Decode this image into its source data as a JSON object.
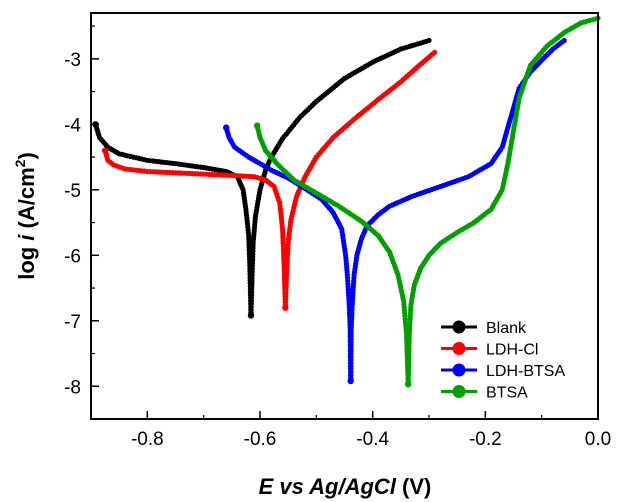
{
  "chart_data": {
    "type": "line",
    "xlabel": {
      "italic": "E vs Ag/AgCl",
      "unit": " (V)"
    },
    "ylabel": {
      "prefix": "log ",
      "italic": "i",
      "unit": " (A/cm",
      "sup": "2",
      "close": ")"
    },
    "xlim": [
      -0.9,
      0.0
    ],
    "ylim": [
      -8.5,
      -2.3
    ],
    "xticks": [
      -0.8,
      -0.6,
      -0.4,
      -0.2,
      0.0
    ],
    "xtick_labels": [
      "-0.8",
      "-0.6",
      "-0.4",
      "-0.2",
      "0.0"
    ],
    "yticks": [
      -3,
      -4,
      -5,
      -6,
      -7,
      -8
    ],
    "ytick_labels": [
      "-3",
      "-4",
      "-5",
      "-6",
      "-7",
      "-8"
    ],
    "grid": false,
    "legend_position": "bottom-right",
    "series": [
      {
        "name": "Blank",
        "color": "#000000",
        "cathodic": [
          [
            -0.892,
            -4.0
          ],
          [
            -0.885,
            -4.2
          ],
          [
            -0.87,
            -4.35
          ],
          [
            -0.85,
            -4.45
          ],
          [
            -0.8,
            -4.55
          ],
          [
            -0.75,
            -4.6
          ],
          [
            -0.7,
            -4.66
          ],
          [
            -0.66,
            -4.72
          ],
          [
            -0.64,
            -4.8
          ],
          [
            -0.63,
            -5.0
          ],
          [
            -0.625,
            -5.3
          ],
          [
            -0.62,
            -5.7
          ],
          [
            -0.618,
            -6.2
          ],
          [
            -0.616,
            -6.92
          ]
        ],
        "anodic": [
          [
            -0.616,
            -6.92
          ],
          [
            -0.614,
            -6.3
          ],
          [
            -0.612,
            -5.8
          ],
          [
            -0.608,
            -5.4
          ],
          [
            -0.6,
            -5.0
          ],
          [
            -0.59,
            -4.7
          ],
          [
            -0.58,
            -4.5
          ],
          [
            -0.56,
            -4.22
          ],
          [
            -0.53,
            -3.9
          ],
          [
            -0.5,
            -3.65
          ],
          [
            -0.45,
            -3.3
          ],
          [
            -0.4,
            -3.05
          ],
          [
            -0.35,
            -2.85
          ],
          [
            -0.3,
            -2.72
          ]
        ]
      },
      {
        "name": "LDH-Cl",
        "color": "#ff0000",
        "cathodic": [
          [
            -0.875,
            -4.4
          ],
          [
            -0.87,
            -4.55
          ],
          [
            -0.86,
            -4.62
          ],
          [
            -0.84,
            -4.68
          ],
          [
            -0.8,
            -4.72
          ],
          [
            -0.75,
            -4.74
          ],
          [
            -0.7,
            -4.76
          ],
          [
            -0.65,
            -4.78
          ],
          [
            -0.61,
            -4.8
          ],
          [
            -0.59,
            -4.85
          ],
          [
            -0.575,
            -4.95
          ],
          [
            -0.565,
            -5.2
          ],
          [
            -0.56,
            -5.6
          ],
          [
            -0.557,
            -6.2
          ],
          [
            -0.555,
            -6.8
          ]
        ],
        "anodic": [
          [
            -0.555,
            -6.8
          ],
          [
            -0.553,
            -6.3
          ],
          [
            -0.55,
            -5.8
          ],
          [
            -0.545,
            -5.45
          ],
          [
            -0.535,
            -5.1
          ],
          [
            -0.52,
            -4.8
          ],
          [
            -0.5,
            -4.5
          ],
          [
            -0.47,
            -4.2
          ],
          [
            -0.43,
            -3.9
          ],
          [
            -0.39,
            -3.62
          ],
          [
            -0.35,
            -3.35
          ],
          [
            -0.32,
            -3.12
          ],
          [
            -0.29,
            -2.9
          ]
        ]
      },
      {
        "name": "LDH-BTSA",
        "color": "#0000ff",
        "cathodic": [
          [
            -0.66,
            -4.05
          ],
          [
            -0.655,
            -4.2
          ],
          [
            -0.645,
            -4.35
          ],
          [
            -0.62,
            -4.5
          ],
          [
            -0.58,
            -4.7
          ],
          [
            -0.55,
            -4.82
          ],
          [
            -0.52,
            -4.98
          ],
          [
            -0.49,
            -5.15
          ],
          [
            -0.47,
            -5.35
          ],
          [
            -0.455,
            -5.6
          ],
          [
            -0.448,
            -6.0
          ],
          [
            -0.445,
            -6.3
          ],
          [
            -0.442,
            -6.7
          ],
          [
            -0.44,
            -7.1
          ],
          [
            -0.439,
            -7.92
          ]
        ],
        "anodic": [
          [
            -0.439,
            -7.92
          ],
          [
            -0.438,
            -7.1
          ],
          [
            -0.436,
            -6.7
          ],
          [
            -0.433,
            -6.3
          ],
          [
            -0.428,
            -6.0
          ],
          [
            -0.42,
            -5.75
          ],
          [
            -0.41,
            -5.55
          ],
          [
            -0.39,
            -5.38
          ],
          [
            -0.37,
            -5.25
          ],
          [
            -0.33,
            -5.1
          ],
          [
            -0.28,
            -4.95
          ],
          [
            -0.23,
            -4.8
          ],
          [
            -0.19,
            -4.6
          ],
          [
            -0.17,
            -4.35
          ],
          [
            -0.155,
            -3.9
          ],
          [
            -0.14,
            -3.45
          ],
          [
            -0.12,
            -3.2
          ],
          [
            -0.1,
            -3.02
          ],
          [
            -0.08,
            -2.85
          ],
          [
            -0.06,
            -2.72
          ]
        ]
      },
      {
        "name": "BTSA",
        "color": "#00a000",
        "cathodic": [
          [
            -0.605,
            -4.02
          ],
          [
            -0.6,
            -4.2
          ],
          [
            -0.59,
            -4.4
          ],
          [
            -0.57,
            -4.6
          ],
          [
            -0.54,
            -4.85
          ],
          [
            -0.5,
            -5.05
          ],
          [
            -0.46,
            -5.25
          ],
          [
            -0.42,
            -5.48
          ],
          [
            -0.39,
            -5.7
          ],
          [
            -0.37,
            -5.95
          ],
          [
            -0.355,
            -6.3
          ],
          [
            -0.345,
            -6.7
          ],
          [
            -0.34,
            -7.2
          ],
          [
            -0.337,
            -7.97
          ]
        ],
        "anodic": [
          [
            -0.337,
            -7.97
          ],
          [
            -0.335,
            -7.2
          ],
          [
            -0.332,
            -6.75
          ],
          [
            -0.326,
            -6.45
          ],
          [
            -0.315,
            -6.2
          ],
          [
            -0.3,
            -6.0
          ],
          [
            -0.28,
            -5.82
          ],
          [
            -0.25,
            -5.65
          ],
          [
            -0.22,
            -5.5
          ],
          [
            -0.19,
            -5.3
          ],
          [
            -0.17,
            -5.0
          ],
          [
            -0.16,
            -4.6
          ],
          [
            -0.15,
            -4.1
          ],
          [
            -0.14,
            -3.6
          ],
          [
            -0.12,
            -3.1
          ],
          [
            -0.09,
            -2.8
          ],
          [
            -0.06,
            -2.6
          ],
          [
            -0.03,
            -2.45
          ],
          [
            0.0,
            -2.38
          ]
        ]
      }
    ]
  }
}
